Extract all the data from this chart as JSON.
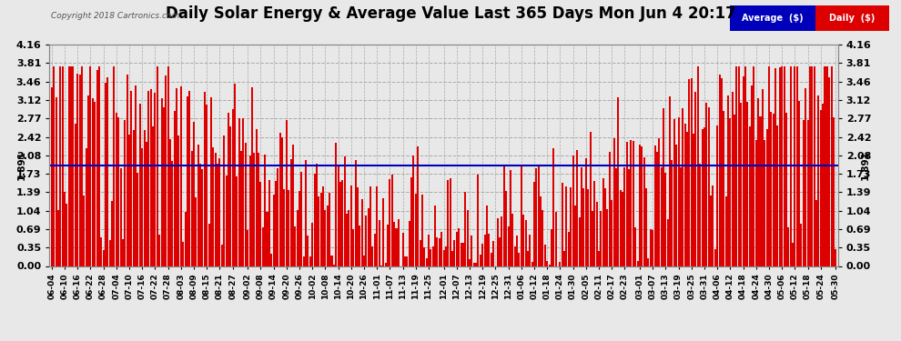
{
  "title": "Daily Solar Energy & Average Value Last 365 Days Mon Jun 4 20:17",
  "copyright": "Copyright 2018 Cartronics.com",
  "average_value": 1.891,
  "average_label": "1.891",
  "bar_color": "#dd0000",
  "avg_line_color": "#0000bb",
  "background_color": "#e8e8e8",
  "plot_bg_color": "#e8e8e8",
  "grid_color": "#aaaaaa",
  "ylim": [
    0.0,
    4.16
  ],
  "yticks": [
    0.0,
    0.35,
    0.69,
    1.04,
    1.39,
    1.73,
    2.08,
    2.42,
    2.77,
    3.12,
    3.46,
    3.81,
    4.16
  ],
  "x_labels": [
    "06-04",
    "06-10",
    "06-16",
    "06-22",
    "06-28",
    "07-04",
    "07-10",
    "07-16",
    "07-22",
    "07-28",
    "08-03",
    "08-09",
    "08-15",
    "08-21",
    "08-27",
    "09-02",
    "09-08",
    "09-14",
    "09-20",
    "09-26",
    "10-02",
    "10-08",
    "10-14",
    "10-20",
    "10-26",
    "11-01",
    "11-07",
    "11-13",
    "11-19",
    "11-25",
    "12-01",
    "12-07",
    "12-13",
    "12-19",
    "12-25",
    "12-31",
    "01-06",
    "01-12",
    "01-18",
    "01-24",
    "01-30",
    "02-05",
    "02-11",
    "02-17",
    "02-23",
    "03-01",
    "03-07",
    "03-13",
    "03-19",
    "03-25",
    "03-31",
    "04-06",
    "04-12",
    "04-18",
    "04-24",
    "04-30",
    "05-06",
    "05-12",
    "05-18",
    "05-24",
    "05-30"
  ],
  "legend_avg_bg": "#0000bb",
  "legend_daily_bg": "#dd0000",
  "legend_text_color": "#ffffff",
  "title_fontsize": 12,
  "tick_fontsize": 8,
  "xlabel_fontsize": 6.5
}
